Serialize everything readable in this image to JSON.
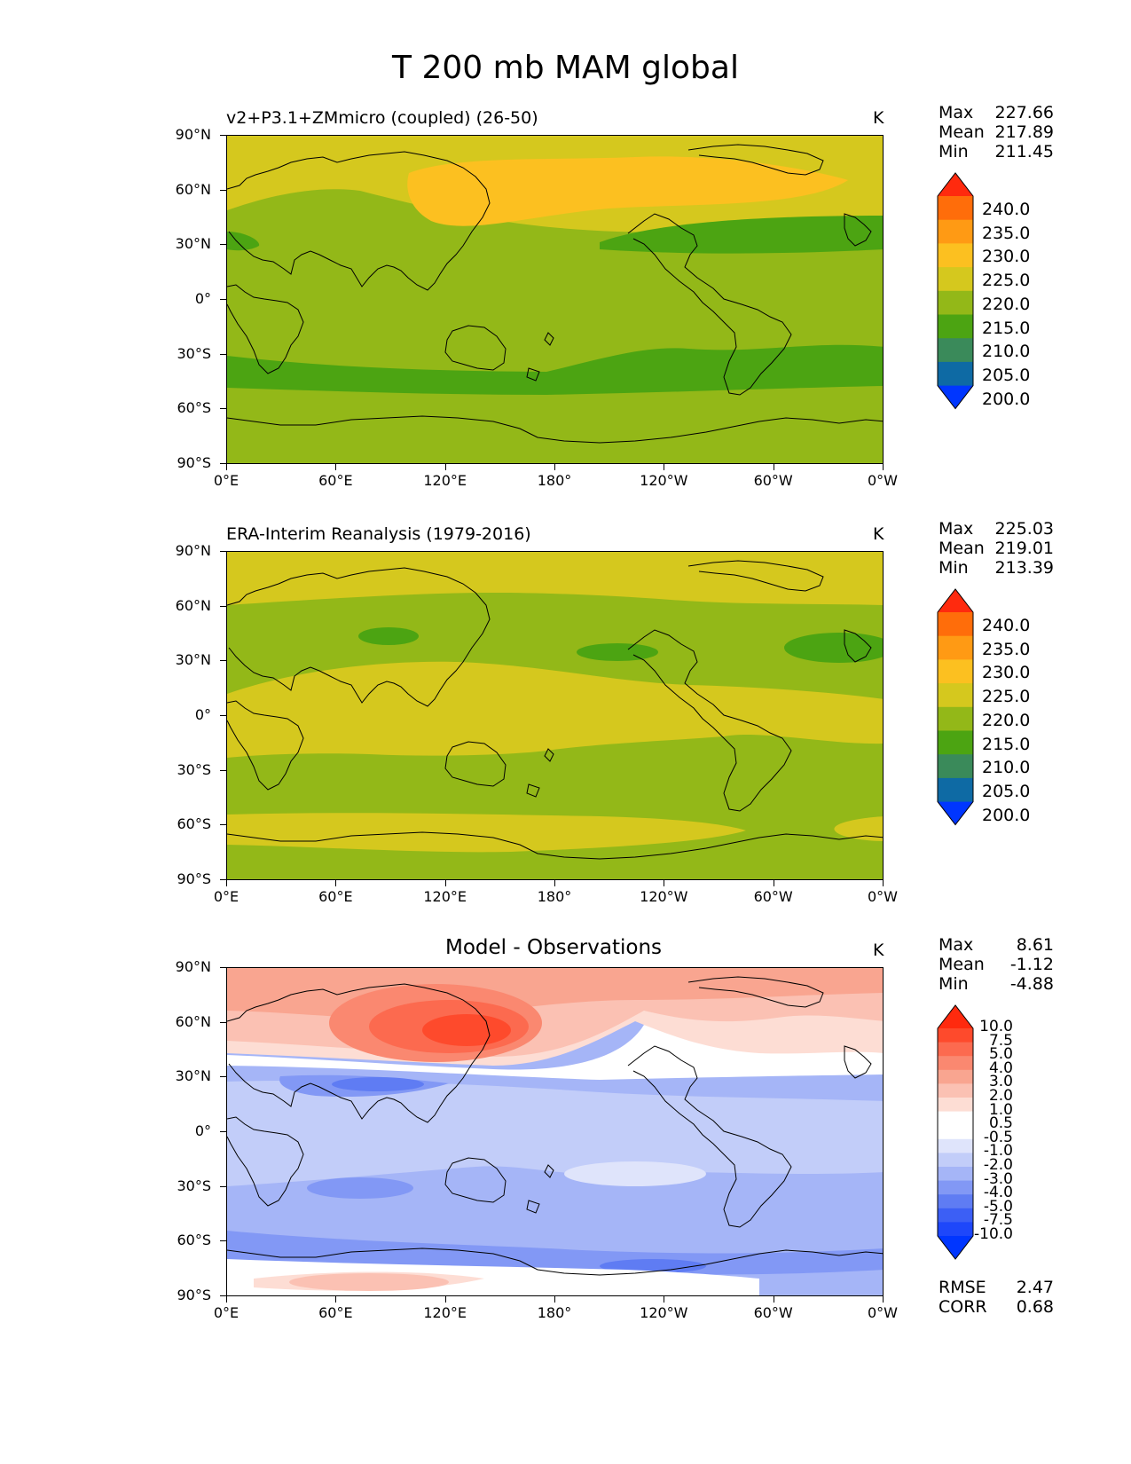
{
  "figure_title": "T 200 mb MAM global",
  "units": "K",
  "x_ticks": [
    "0°E",
    "60°E",
    "120°E",
    "180°",
    "120°W",
    "60°W",
    "0°W"
  ],
  "y_ticks": [
    "90°N",
    "60°N",
    "30°N",
    "0°",
    "30°S",
    "60°S",
    "90°S"
  ],
  "panels": [
    {
      "title": "v2+P3.1+ZMmicro (coupled) (26-50)",
      "stats": {
        "max_label": "Max",
        "max": "227.66",
        "mean_label": "Mean",
        "mean": "217.89",
        "min_label": "Min",
        "min": "211.45"
      }
    },
    {
      "title": "ERA-Interim Reanalysis (1979-2016)",
      "stats": {
        "max_label": "Max",
        "max": "225.03",
        "mean_label": "Mean",
        "mean": "219.01",
        "min_label": "Min",
        "min": "213.39"
      }
    },
    {
      "title": "Model - Observations",
      "stats": {
        "max_label": "Max",
        "max": "8.61",
        "mean_label": "Mean",
        "mean": "-1.12",
        "min_label": "Min",
        "min": "-4.88"
      },
      "rmse_label": "RMSE",
      "rmse": "2.47",
      "corr_label": "CORR",
      "corr": "0.68"
    }
  ],
  "colorbar_temp": {
    "labels": [
      "240.0",
      "235.0",
      "230.0",
      "225.0",
      "220.0",
      "215.0",
      "210.0",
      "205.0",
      "200.0"
    ],
    "colors": [
      "#ff2a0e",
      "#ff6d0a",
      "#ff9a14",
      "#fcc020",
      "#d5c81e",
      "#93b818",
      "#4ca412",
      "#3a8a5a",
      "#0e6aa4",
      "#0036ff"
    ]
  },
  "colorbar_diff": {
    "labels": [
      "10.0",
      "7.5",
      "5.0",
      "4.0",
      "3.0",
      "2.0",
      "1.0",
      "0.5",
      "-0.5",
      "-1.0",
      "-2.0",
      "-3.0",
      "-4.0",
      "-5.0",
      "-7.5",
      "-10.0"
    ],
    "colors": [
      "#ff2a0e",
      "#fe4a2c",
      "#fc6a4f",
      "#fa8870",
      "#f9a590",
      "#fbc1b3",
      "#fdddd4",
      "#ffffff",
      "#ffffff",
      "#dfe4fb",
      "#c2cdf9",
      "#a5b5f7",
      "#8298f5",
      "#5f7cf3",
      "#3c5ff5",
      "#1e47fa",
      "#0036ff"
    ]
  },
  "chart_data": [
    {
      "type": "heatmap",
      "title": "v2+P3.1+ZMmicro (coupled) (26-50)",
      "variable": "T 200 mb MAM",
      "units": "K",
      "lon_range": [
        0,
        360
      ],
      "lat_range": [
        -90,
        90
      ],
      "colorbar_levels": [
        200,
        205,
        210,
        215,
        220,
        225,
        230,
        235,
        240
      ],
      "max": 227.66,
      "mean": 217.89,
      "min": 211.45
    },
    {
      "type": "heatmap",
      "title": "ERA-Interim Reanalysis (1979-2016)",
      "variable": "T 200 mb MAM",
      "units": "K",
      "lon_range": [
        0,
        360
      ],
      "lat_range": [
        -90,
        90
      ],
      "colorbar_levels": [
        200,
        205,
        210,
        215,
        220,
        225,
        230,
        235,
        240
      ],
      "max": 225.03,
      "mean": 219.01,
      "min": 213.39
    },
    {
      "type": "heatmap",
      "title": "Model - Observations",
      "variable": "T 200 mb MAM difference",
      "units": "K",
      "lon_range": [
        0,
        360
      ],
      "lat_range": [
        -90,
        90
      ],
      "colorbar_levels": [
        -10,
        -7.5,
        -5,
        -4,
        -3,
        -2,
        -1,
        -0.5,
        0.5,
        1,
        2,
        3,
        4,
        5,
        7.5,
        10
      ],
      "max": 8.61,
      "mean": -1.12,
      "min": -4.88,
      "rmse": 2.47,
      "corr": 0.68
    }
  ]
}
